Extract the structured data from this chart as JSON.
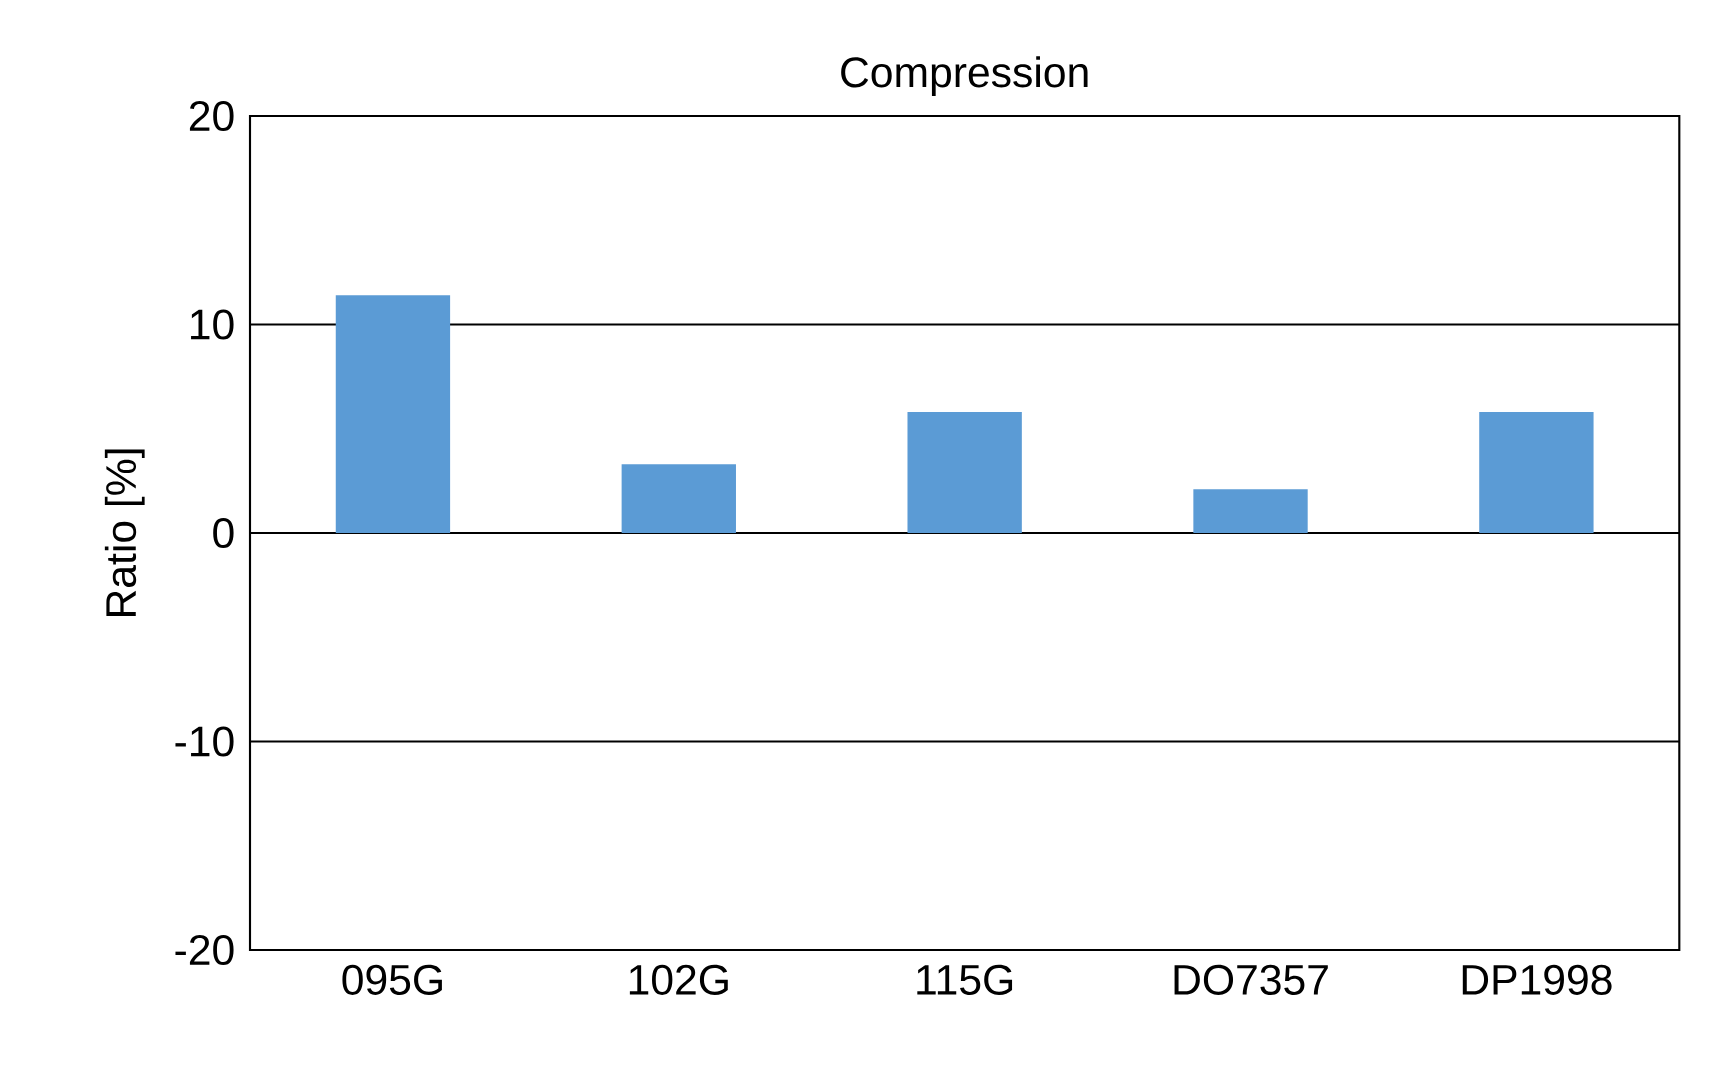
{
  "chart_data": {
    "type": "bar",
    "title": "Compression",
    "ylabel": "Ratio [%]",
    "categories": [
      "095G",
      "102G",
      "115G",
      "DO7357",
      "DP1998"
    ],
    "values": [
      11.4,
      3.3,
      5.8,
      2.1,
      5.8
    ],
    "color": "#5b9bd5",
    "ylim": [
      -20,
      20
    ],
    "yticks": [
      -20,
      -10,
      0,
      10,
      20
    ],
    "grid": "y"
  }
}
